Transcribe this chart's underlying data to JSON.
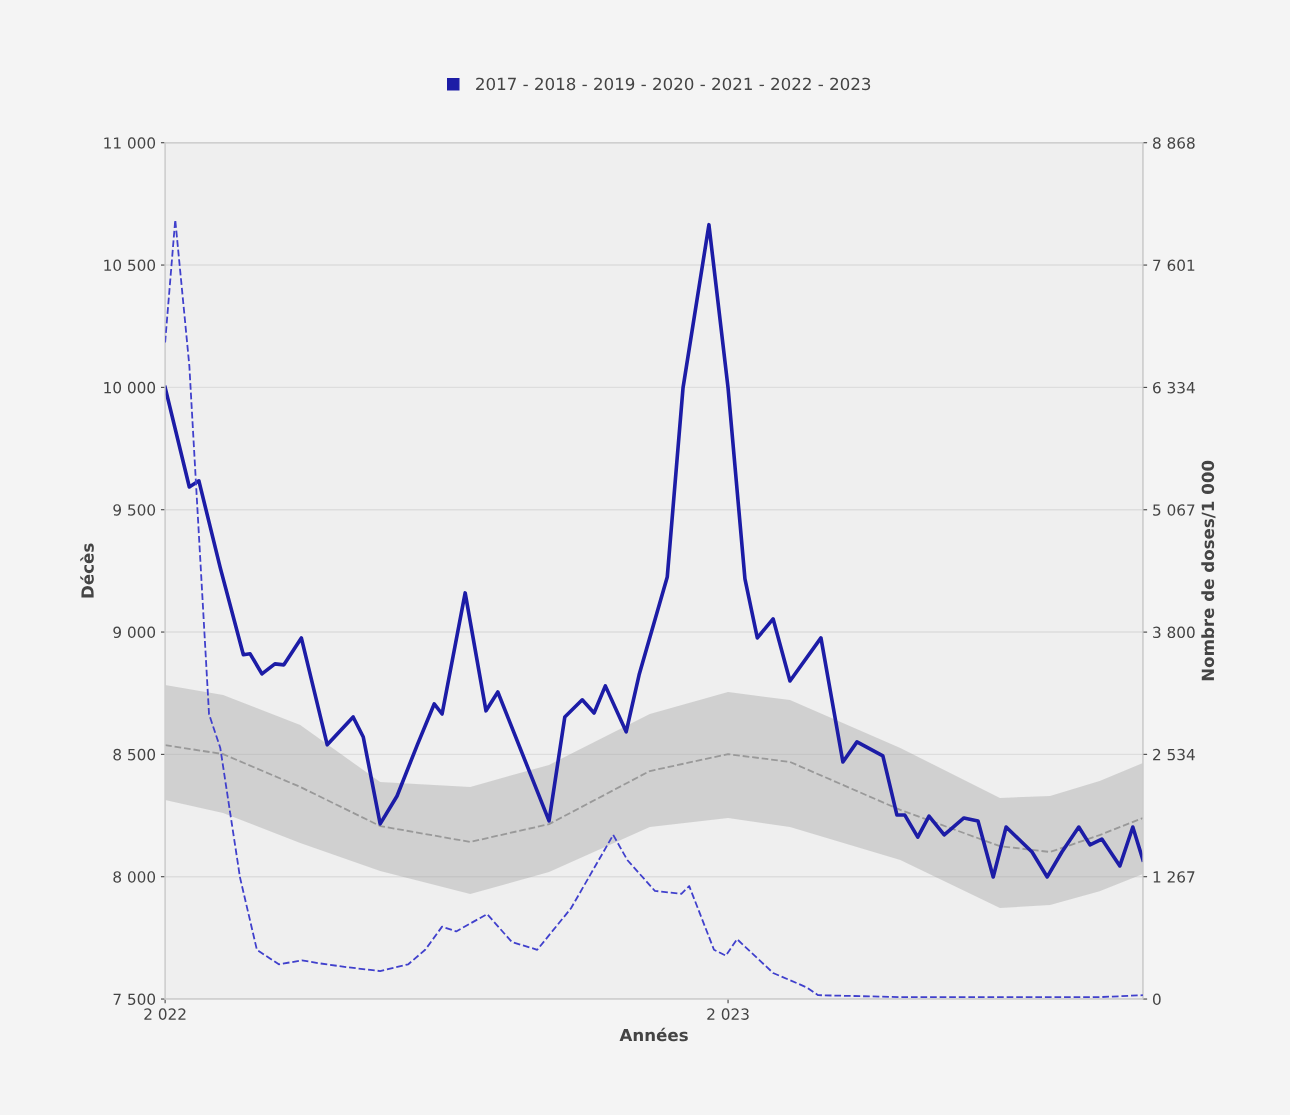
{
  "chart_data": {
    "type": "line",
    "xlabel": "Années",
    "ylabel": "Décès",
    "y2label": "Nombre de doses/1 000",
    "xlim": [
      2022,
      2023.737
    ],
    "xticks": [
      {
        "value": 2022,
        "label": "2 022"
      },
      {
        "value": 2023,
        "label": "2 023"
      }
    ],
    "ylim": [
      7500,
      11000
    ],
    "yticks": [
      {
        "value": 7500,
        "label": "7 500"
      },
      {
        "value": 8000,
        "label": "8 000"
      },
      {
        "value": 8500,
        "label": "8 500"
      },
      {
        "value": 9000,
        "label": "9 000"
      },
      {
        "value": 9500,
        "label": "9 500"
      },
      {
        "value": 10000,
        "label": "10 000"
      },
      {
        "value": 10500,
        "label": "10 500"
      },
      {
        "value": 11000,
        "label": "11 000"
      }
    ],
    "y2lim": [
      0,
      8868
    ],
    "y2ticks": [
      0,
      {
        "value": 1267,
        "label": "1 267"
      },
      {
        "value": 2534,
        "label": "2 534"
      },
      {
        "value": 3800,
        "label": "3 800"
      },
      {
        "value": 5067,
        "label": "5 067"
      },
      {
        "value": 6334,
        "label": "6 334"
      },
      {
        "value": 7601,
        "label": "7 601"
      },
      {
        "value": 8868,
        "label": "8 868"
      }
    ],
    "grid": "y",
    "legend": "top",
    "marker": "none",
    "series": [
      {
        "name": null,
        "color": "#999999",
        "line_style": "dashed",
        "x": [
          2022.0,
          2022.103,
          2022.24,
          2022.382,
          2022.542,
          2022.682,
          2022.861,
          2023.0,
          2023.11,
          2023.306,
          2023.483,
          2023.572,
          2023.66,
          2023.737
        ],
        "values": [
          8538,
          8501,
          8367,
          8207,
          8142,
          8215,
          8432,
          8501,
          8469,
          8273,
          8125,
          8101,
          8170,
          8240
        ],
        "upper": [
          8784,
          8743,
          8620,
          8387,
          8367,
          8457,
          8665,
          8755,
          8722,
          8526,
          8322,
          8330,
          8391,
          8465
        ],
        "lower": [
          8314,
          8260,
          8138,
          8023,
          7929,
          8019,
          8203,
          8240,
          8203,
          8068,
          7872,
          7884,
          7941,
          8011
        ]
      },
      {
        "name": null,
        "color": "#4040cc",
        "line_style": "dashed",
        "axis": "y2",
        "x": [
          2022.0,
          2022.018,
          2022.043,
          2022.078,
          2022.098,
          2022.133,
          2022.163,
          2022.202,
          2022.243,
          2022.274,
          2022.323,
          2022.382,
          2022.432,
          2022.462,
          2022.492,
          2022.517,
          2022.572,
          2022.616,
          2022.661,
          2022.721,
          2022.796,
          2022.821,
          2022.87,
          2022.917,
          2022.931,
          2022.975,
          2022.996,
          2023.016,
          2023.08,
          2023.14,
          2023.16,
          2023.306,
          2023.661,
          2023.737
        ],
        "values": [
          6800,
          8070,
          6560,
          2950,
          2600,
          1260,
          510,
          360,
          400,
          370,
          330,
          290,
          360,
          510,
          750,
          700,
          880,
          590,
          510,
          940,
          1700,
          1440,
          1120,
          1090,
          1170,
          510,
          450,
          620,
          270,
          120,
          40,
          20,
          20,
          40
        ]
      },
      {
        "name": "2017 - 2018 - 2019 - 2020 - 2021 - 2022 - 2023",
        "color": "#1c1ca6",
        "line_style": "solid",
        "x": [
          2022.0,
          2022.043,
          2022.06,
          2022.098,
          2022.139,
          2022.151,
          2022.172,
          2022.195,
          2022.211,
          2022.242,
          2022.288,
          2022.334,
          2022.352,
          2022.382,
          2022.412,
          2022.448,
          2022.478,
          2022.492,
          2022.533,
          2022.57,
          2022.591,
          2022.682,
          2022.71,
          2022.741,
          2022.762,
          2022.782,
          2022.819,
          2022.842,
          2022.892,
          2022.92,
          2022.966,
          2023.0,
          2023.03,
          2023.052,
          2023.08,
          2023.11,
          2023.165,
          2023.204,
          2023.229,
          2023.275,
          2023.3,
          2023.314,
          2023.337,
          2023.357,
          2023.384,
          2023.419,
          2023.444,
          2023.471,
          2023.494,
          2023.54,
          2023.567,
          2023.593,
          2023.623,
          2023.643,
          2023.664,
          2023.696,
          2023.719,
          2023.737
        ],
        "values": [
          10000,
          9593,
          9618,
          9262,
          8907,
          8911,
          8829,
          8870,
          8866,
          8976,
          8539,
          8653,
          8571,
          8216,
          8330,
          8539,
          8706,
          8665,
          9160,
          8678,
          8755,
          8228,
          8653,
          8723,
          8669,
          8780,
          8592,
          8825,
          9225,
          9998,
          10665,
          9998,
          9217,
          8976,
          9054,
          8800,
          8976,
          8469,
          8551,
          8494,
          8252,
          8252,
          8162,
          8248,
          8171,
          8240,
          8228,
          7999,
          8203,
          8101,
          7999,
          8101,
          8203,
          8130,
          8154,
          8044,
          8203,
          8068
        ]
      }
    ]
  }
}
